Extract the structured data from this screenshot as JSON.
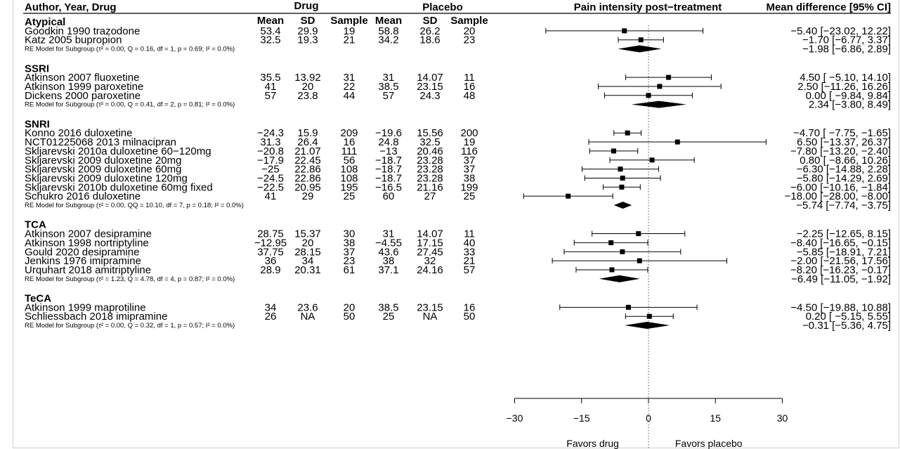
{
  "header": {
    "author": "Author, Year, Drug",
    "drug": "Drug",
    "placebo": "Placebo",
    "mean": "Mean",
    "sd": "SD",
    "sample": "Sample",
    "pain": "Pain intensity post−treatment",
    "md": "Mean difference [95% CI]"
  },
  "chart_data": {
    "type": "forest",
    "xlim": [
      -30,
      30
    ],
    "ticks": [
      "−30",
      "−15",
      "0",
      "15",
      "30"
    ],
    "tick_values": [
      -30,
      -15,
      0,
      15,
      30
    ],
    "favors_left": "Favors drug",
    "favors_right": "Favors placebo",
    "groups": [
      {
        "name": "Atypical",
        "studies": [
          {
            "label": "Goodkin 1990 trazodone",
            "d_mean": "53.4",
            "d_sd": "29.9",
            "d_n": "19",
            "p_mean": "58.8",
            "p_sd": "26.2",
            "p_n": "20",
            "est": -5.4,
            "lo": -23.02,
            "hi": 12.22,
            "ci_text": "−5.40 [−23.02, 12.22]"
          },
          {
            "label": "Katz 2005 bupropion",
            "d_mean": "32.5",
            "d_sd": "19.3",
            "d_n": "21",
            "p_mean": "34.2",
            "p_sd": "18.6",
            "p_n": "23",
            "est": -1.7,
            "lo": -6.77,
            "hi": 3.37,
            "ci_text": "−1.70 [−6.77, 3.37]"
          }
        ],
        "re_label": "RE Model for Subgroup (τ² = 0.00, Q = 0.16, df = 1, p = 0.69; I² = 0.0%)",
        "summary": {
          "est": -1.98,
          "lo": -6.86,
          "hi": 2.89,
          "ci_text": "−1.98 [−6.86, 2.89]"
        }
      },
      {
        "name": "SSRI",
        "studies": [
          {
            "label": "Atkinson 2007 fluoxetine",
            "d_mean": "35.5",
            "d_sd": "13.92",
            "d_n": "31",
            "p_mean": "31",
            "p_sd": "14.07",
            "p_n": "11",
            "est": 4.5,
            "lo": -5.1,
            "hi": 14.1,
            "ci_text": "4.50 [ −5.10, 14.10]"
          },
          {
            "label": "Atkinson 1999 paroxetine",
            "d_mean": "41",
            "d_sd": "20",
            "d_n": "22",
            "p_mean": "38.5",
            "p_sd": "23.15",
            "p_n": "16",
            "est": 2.5,
            "lo": -11.26,
            "hi": 16.26,
            "ci_text": "2.50 [−11.26, 16.26]"
          },
          {
            "label": "Dickens 2000 paroxetine",
            "d_mean": "57",
            "d_sd": "23.8",
            "d_n": "44",
            "p_mean": "57",
            "p_sd": "24.3",
            "p_n": "48",
            "est": 0.0,
            "lo": -9.84,
            "hi": 9.84,
            "ci_text": "0.00 [ −9.84, 9.84]"
          }
        ],
        "re_label": "RE Model for Subgroup (τ² = 0.00, Q = 0.41, df = 2, p = 0.81; I² = 0.0%)",
        "summary": {
          "est": 2.34,
          "lo": -3.8,
          "hi": 8.49,
          "ci_text": "2.34 [−3.80, 8.49]"
        }
      },
      {
        "name": "SNRI",
        "studies": [
          {
            "label": "Konno 2016 duloxetine",
            "d_mean": "−24.3",
            "d_sd": "15.9",
            "d_n": "209",
            "p_mean": "−19.6",
            "p_sd": "15.56",
            "p_n": "200",
            "est": -4.7,
            "lo": -7.75,
            "hi": -1.65,
            "ci_text": "−4.70 [ −7.75, −1.65]"
          },
          {
            "label": "NCT01225068 2013 milnacipran",
            "d_mean": "31.3",
            "d_sd": "26.4",
            "d_n": "16",
            "p_mean": "24.8",
            "p_sd": "32.5",
            "p_n": "19",
            "est": 6.5,
            "lo": -13.37,
            "hi": 26.37,
            "ci_text": "6.50 [−13.37, 26.37]"
          },
          {
            "label": "Skljarevski 2010a duloxetine 60−120mg",
            "d_mean": "−20.8",
            "d_sd": "21.07",
            "d_n": "111",
            "p_mean": "−13",
            "p_sd": "20.46",
            "p_n": "116",
            "est": -7.8,
            "lo": -13.2,
            "hi": -2.4,
            "ci_text": "−7.80 [−13.20, −2.40]"
          },
          {
            "label": "Skljarevski 2009 duloxetine 20mg",
            "d_mean": "−17.9",
            "d_sd": "22.45",
            "d_n": "56",
            "p_mean": "−18.7",
            "p_sd": "23.28",
            "p_n": "37",
            "est": 0.8,
            "lo": -8.66,
            "hi": 10.26,
            "ci_text": "0.80 [ −8.66, 10.26]"
          },
          {
            "label": "Skljarevski 2009 duloxetine 60mg",
            "d_mean": "−25",
            "d_sd": "22.86",
            "d_n": "108",
            "p_mean": "−18.7",
            "p_sd": "23.28",
            "p_n": "37",
            "est": -6.3,
            "lo": -14.88,
            "hi": 2.28,
            "ci_text": "−6.30 [−14.88, 2.28]"
          },
          {
            "label": "Skljarevski 2009 duloxetine 120mg",
            "d_mean": "−24.5",
            "d_sd": "22.86",
            "d_n": "108",
            "p_mean": "−18.7",
            "p_sd": "23.28",
            "p_n": "38",
            "est": -5.8,
            "lo": -14.29,
            "hi": 2.69,
            "ci_text": "−5.80 [−14.29, 2.69]"
          },
          {
            "label": "Skljarevski 2010b duloxetine 60mg fixed",
            "d_mean": "−22.5",
            "d_sd": "20.95",
            "d_n": "195",
            "p_mean": "−16.5",
            "p_sd": "21.16",
            "p_n": "199",
            "est": -6.0,
            "lo": -10.16,
            "hi": -1.84,
            "ci_text": "−6.00 [−10.16, −1.84]"
          },
          {
            "label": "Schukro 2016 duloxetine",
            "d_mean": "41",
            "d_sd": "29",
            "d_n": "25",
            "p_mean": "60",
            "p_sd": "27",
            "p_n": "25",
            "est": -18.0,
            "lo": -28.0,
            "hi": -8.0,
            "ci_text": "−18.00 [−28.00, −8.00]"
          }
        ],
        "re_label": "RE Model for Subgroup (τ² = 0.00, QQ = 10.10, df = 7, p = 0.18; I² = 0.0%)",
        "summary": {
          "est": -5.74,
          "lo": -7.74,
          "hi": -3.75,
          "ci_text": "−5.74 [−7.74, −3.75]"
        }
      },
      {
        "name": "TCA",
        "studies": [
          {
            "label": "Atkinson 2007 desipramine",
            "d_mean": "28.75",
            "d_sd": "15.37",
            "d_n": "30",
            "p_mean": "31",
            "p_sd": "14.07",
            "p_n": "11",
            "est": -2.25,
            "lo": -12.65,
            "hi": 8.15,
            "ci_text": "−2.25 [−12.65, 8.15]"
          },
          {
            "label": "Atkinson 1998 nortriptyline",
            "d_mean": "−12.95",
            "d_sd": "20",
            "d_n": "38",
            "p_mean": "−4.55",
            "p_sd": "17.15",
            "p_n": "40",
            "est": -8.4,
            "lo": -16.65,
            "hi": -0.15,
            "ci_text": "−8.40 [−16.65, −0.15]"
          },
          {
            "label": "Gould 2020 desipramine",
            "d_mean": "37.75",
            "d_sd": "28.15",
            "d_n": "37",
            "p_mean": "43.6",
            "p_sd": "27.45",
            "p_n": "33",
            "est": -5.85,
            "lo": -18.91,
            "hi": 7.21,
            "ci_text": "−5.85 [−18.91, 7.21]"
          },
          {
            "label": "Jenkins 1976 imipramine",
            "d_mean": "36",
            "d_sd": "34",
            "d_n": "23",
            "p_mean": "38",
            "p_sd": "32",
            "p_n": "21",
            "est": -2.0,
            "lo": -21.56,
            "hi": 17.56,
            "ci_text": "−2.00 [−21.56, 17.56]"
          },
          {
            "label": "Urquhart 2018 amitriptyline",
            "d_mean": "28.9",
            "d_sd": "20.31",
            "d_n": "61",
            "p_mean": "37.1",
            "p_sd": "24.16",
            "p_n": "57",
            "est": -8.2,
            "lo": -16.23,
            "hi": -0.17,
            "ci_text": "−8.20 [−16.23, −0.17]"
          }
        ],
        "re_label": "RE Model for Subgroup (τ² = 1.23, Q = 4.78, df = 4, p = 0.87; I² = 0.0%)",
        "summary": {
          "est": -6.49,
          "lo": -11.05,
          "hi": -1.92,
          "ci_text": "−6.49 [−11.05, −1.92]"
        }
      },
      {
        "name": "TeCA",
        "studies": [
          {
            "label": "Atkinson 1999 maprotiline",
            "d_mean": "34",
            "d_sd": "23.6",
            "d_n": "20",
            "p_mean": "38.5",
            "p_sd": "23.15",
            "p_n": "16",
            "est": -4.5,
            "lo": -19.88,
            "hi": 10.88,
            "ci_text": "−4.50 [−19.88, 10.88]"
          },
          {
            "label": "Schliessbach 2018 imipramine",
            "d_mean": "26",
            "d_sd": "NA",
            "d_n": "50",
            "p_mean": "25",
            "p_sd": "NA",
            "p_n": "50",
            "est": 0.2,
            "lo": -5.15,
            "hi": 5.55,
            "ci_text": "0.20 [ −5.15, 5.55]"
          }
        ],
        "re_label": "RE Model for Subgroup (τ² = 0.00, Q = 0.32, df = 1, p = 0.57; I² = 0.0%)",
        "summary": {
          "est": -0.31,
          "lo": -5.36,
          "hi": 4.75,
          "ci_text": "−0.31 [−5.36, 4.75]"
        }
      }
    ]
  }
}
